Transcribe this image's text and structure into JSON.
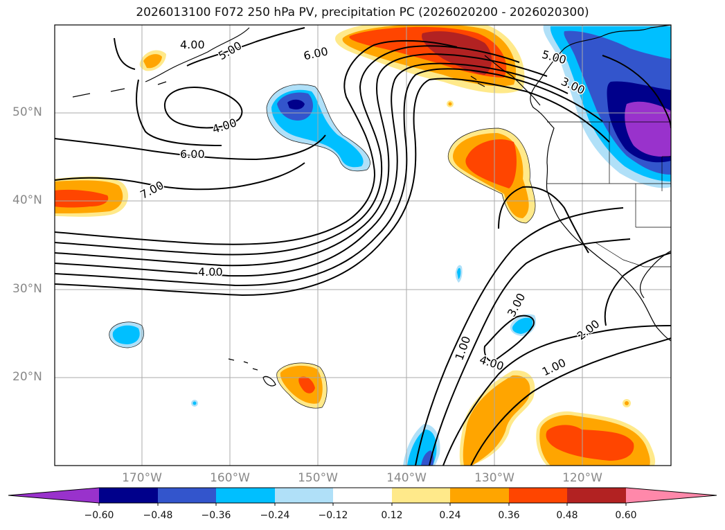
{
  "title": "2026013100 F072 250 hPa PV, precipitation PC (2026020200 - 2026020300)",
  "lat_labels": [
    "50°N",
    "40°N",
    "30°N",
    "20°N"
  ],
  "lon_labels": [
    "170°W",
    "160°W",
    "150°W",
    "140°W",
    "130°W",
    "120°W"
  ],
  "contour_labels": [
    "4.00",
    "5.00",
    "6.00",
    "5.00",
    "3.00",
    "4.00",
    "6.00",
    "7.00",
    "4.00",
    "3.00",
    "2.00",
    "1.00",
    "1.00",
    "4.00"
  ],
  "colorbar": {
    "ticks": [
      "−0.60",
      "−0.48",
      "−0.36",
      "−0.24",
      "−0.12",
      "0.12",
      "0.24",
      "0.36",
      "0.48",
      "0.60"
    ],
    "colors": [
      "#9932cc",
      "#00008b",
      "#3355cc",
      "#00bfff",
      "#b0e0f8",
      "#ffffff",
      "#ffe98a",
      "#ffa500",
      "#ff4500",
      "#b22222",
      "#ff88aa"
    ]
  },
  "colors": {
    "pos_light": "#ffe98a",
    "pos_mid": "#ffa500",
    "pos_high": "#ff4500",
    "pos_max": "#b22222",
    "neg_light": "#b0e0f8",
    "neg_mid": "#00bfff",
    "neg_high": "#3355cc",
    "neg_max": "#00008b",
    "neg_ext": "#9932cc",
    "grid": "#aaaaaa",
    "label_gray": "#888888"
  }
}
